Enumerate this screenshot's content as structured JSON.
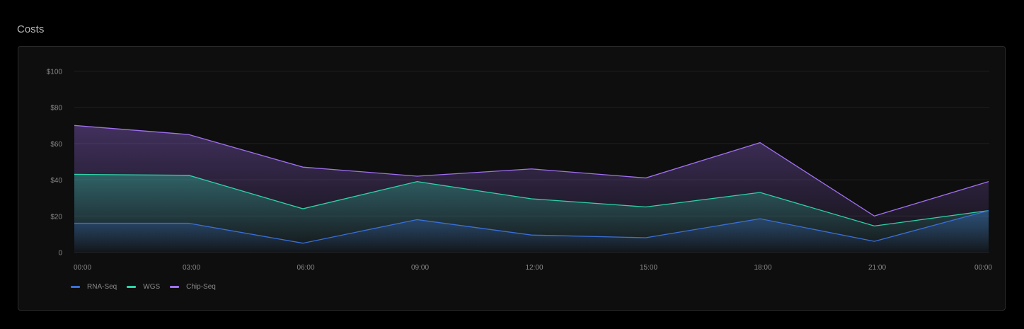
{
  "title": "Costs",
  "chart_data": {
    "type": "area",
    "title": "",
    "xlabel": "",
    "ylabel": "",
    "categories": [
      "00:00",
      "03:00",
      "06:00",
      "09:00",
      "12:00",
      "15:00",
      "18:00",
      "21:00",
      "00:00"
    ],
    "ylim": [
      0,
      100
    ],
    "yticks": [
      0,
      20,
      40,
      60,
      80,
      100
    ],
    "ytick_labels": [
      "0",
      "$20",
      "$40",
      "$60",
      "$80",
      "$100"
    ],
    "grid": true,
    "legend": "bottom-left",
    "series": [
      {
        "name": "RNA-Seq",
        "color": "#3b6fd8",
        "values": [
          16,
          16,
          5,
          18,
          9.5,
          8,
          18.5,
          6,
          23
        ]
      },
      {
        "name": "WGS",
        "color": "#2ed3a8",
        "values": [
          43,
          42.5,
          24,
          39,
          29.5,
          25,
          33,
          14.5,
          23
        ]
      },
      {
        "name": "Chip-Seq",
        "color": "#a070f0",
        "values": [
          70,
          65,
          47,
          42,
          46,
          41,
          60.5,
          20,
          39
        ]
      }
    ]
  }
}
